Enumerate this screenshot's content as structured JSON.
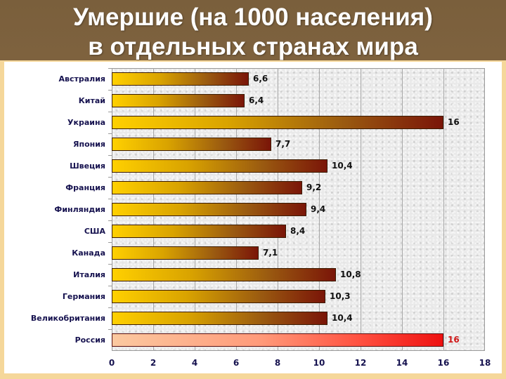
{
  "slide": {
    "title_line1": "Умершие (на 1000 населения)",
    "title_line2": "в отдельных странах мира"
  },
  "chart_data": {
    "type": "bar",
    "orientation": "horizontal",
    "title": "Умершие (на 1000 населения) в отдельных странах мира",
    "xlabel": "",
    "ylabel": "",
    "xlim": [
      0,
      18
    ],
    "x_ticks": [
      "0",
      "2",
      "4",
      "6",
      "8",
      "10",
      "12",
      "14",
      "16",
      "18"
    ],
    "grid": "vertical",
    "legend": "none",
    "categories": [
      "Австралия",
      "Китай",
      "Украина",
      "Япония",
      "Швеция",
      "Франция",
      "Финляндия",
      "США",
      "Канада",
      "Италия",
      "Германия",
      "Великобритания",
      "Россия"
    ],
    "values": [
      6.6,
      6.4,
      16,
      7.7,
      10.4,
      9.2,
      9.4,
      8.4,
      7.1,
      10.8,
      10.3,
      10.4,
      16
    ],
    "value_labels": [
      "6,6",
      "6,4",
      "16",
      "7,7",
      "10,4",
      "9,2",
      "9,4",
      "8,4",
      "7,1",
      "10,8",
      "10,3",
      "10,4",
      "16"
    ],
    "highlighted": [
      "Россия"
    ],
    "colors": {
      "bar_gradient_start": "#ffd000",
      "bar_gradient_end": "#7a1508",
      "highlight_gradient_start": "#fbc9a0",
      "highlight_gradient_end": "#ee1010",
      "highlight_value_text": "#d01818",
      "label_text": "#16124f"
    }
  }
}
